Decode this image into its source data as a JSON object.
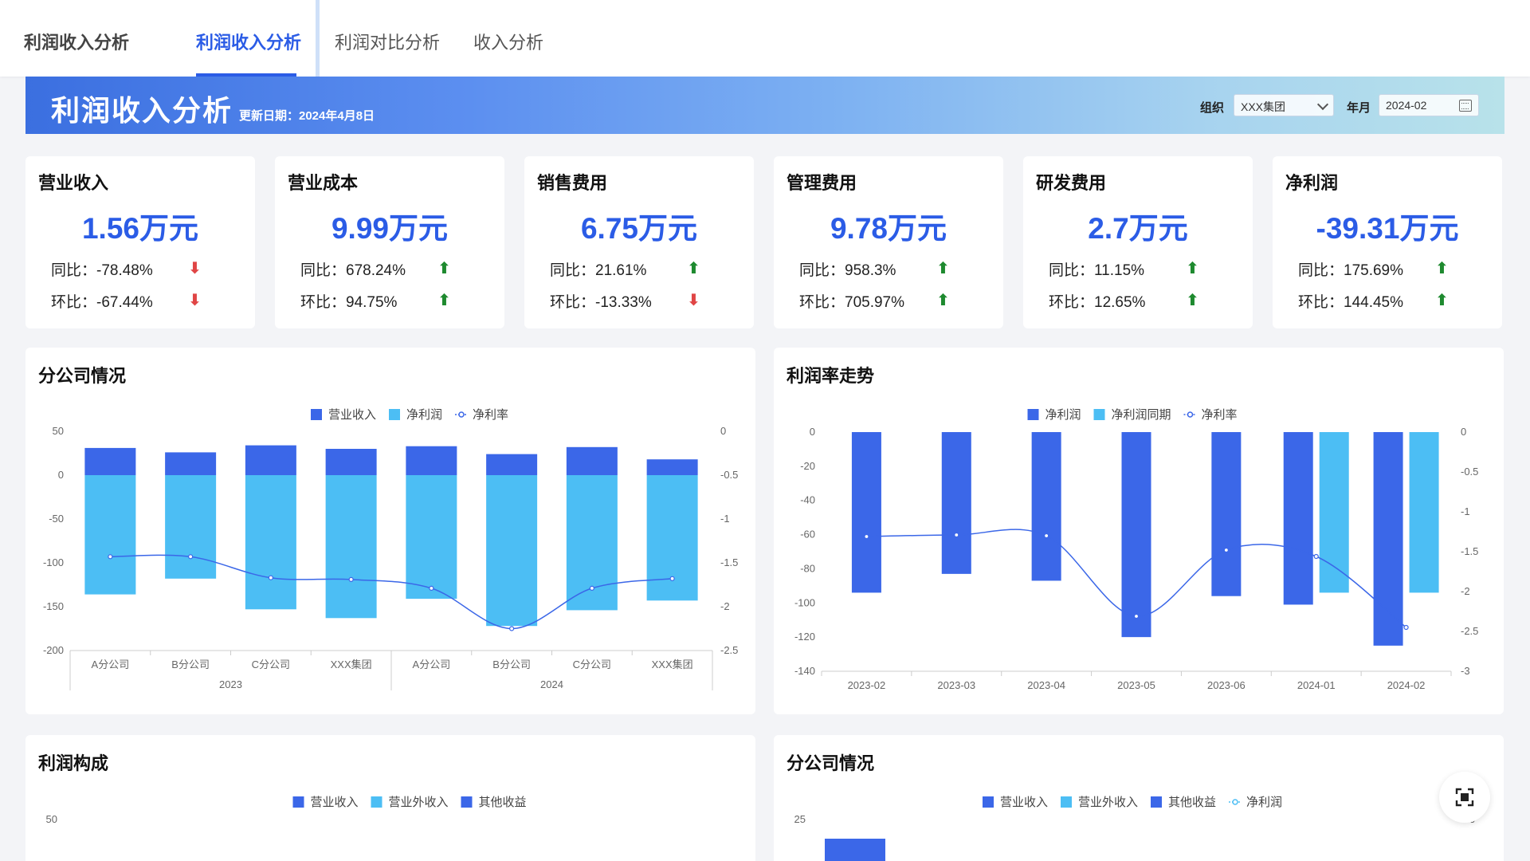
{
  "nav": {
    "brand": "利润收入分析",
    "tabs": [
      {
        "label": "利润收入分析"
      },
      {
        "label": "利润对比分析"
      },
      {
        "label": "收入分析"
      }
    ]
  },
  "banner": {
    "title": "利润收入分析",
    "update_date": "更新日期：2024年4月8日",
    "org_label": "组织",
    "org_value": "XXX集团",
    "month_label": "年月",
    "month_value": "2024-02"
  },
  "kpis": [
    {
      "title": "营业收入",
      "value": "1.56万元",
      "yoy": "同比：-78.48%",
      "yoy_dir": "down",
      "mom": "环比：-67.44%",
      "mom_dir": "down"
    },
    {
      "title": "营业成本",
      "value": "9.99万元",
      "yoy": "同比：678.24%",
      "yoy_dir": "up",
      "mom": "环比：94.75%",
      "mom_dir": "up"
    },
    {
      "title": "销售费用",
      "value": "6.75万元",
      "yoy": "同比：21.61%",
      "yoy_dir": "up",
      "mom": "环比：-13.33%",
      "mom_dir": "down"
    },
    {
      "title": "管理费用",
      "value": "9.78万元",
      "yoy": "同比：958.3%",
      "yoy_dir": "up",
      "mom": "环比：705.97%",
      "mom_dir": "up"
    },
    {
      "title": "研发费用",
      "value": "2.7万元",
      "yoy": "同比：11.15%",
      "yoy_dir": "up",
      "mom": "环比：12.65%",
      "mom_dir": "up"
    },
    {
      "title": "净利润",
      "value": "-39.31万元",
      "yoy": "同比：175.69%",
      "yoy_dir": "up",
      "mom": "环比：144.45%",
      "mom_dir": "up"
    }
  ],
  "colors": {
    "dark_blue": "#3b67e8",
    "light_blue": "#4cbef4",
    "up": "#1e8a2f",
    "down": "#e04545",
    "accent": "#2b5ce6"
  },
  "panels": {
    "branch_title": "分公司情况",
    "trend_title": "利润率走势",
    "composition_title": "利润构成",
    "branch2_title": "分公司情况"
  },
  "chart_data": [
    {
      "type": "bar",
      "title": "分公司情况",
      "categories": [
        "A分公司",
        "B分公司",
        "C分公司",
        "XXX集团",
        "A分公司",
        "B分公司",
        "C分公司",
        "XXX集团"
      ],
      "groups": [
        "2023",
        "2024"
      ],
      "series": [
        {
          "name": "营业收入",
          "values": [
            31,
            26,
            34,
            30,
            33,
            24,
            32,
            18
          ]
        },
        {
          "name": "净利润",
          "values": [
            -136,
            -118,
            -153,
            -163,
            -141,
            -172,
            -154,
            -143
          ]
        },
        {
          "name": "净利率",
          "axis": "right",
          "values": [
            -1.43,
            -1.43,
            -1.67,
            -1.69,
            -1.79,
            -2.25,
            -1.79,
            -1.68
          ]
        }
      ],
      "ylim_left": [
        -200,
        50
      ],
      "yticks_left": [
        "50",
        "0",
        "-50",
        "-100",
        "-150",
        "-200"
      ],
      "ylim_right": [
        -2.5,
        0
      ],
      "yticks_right": [
        "0",
        "-0.5",
        "-1",
        "-1.5",
        "-2",
        "-2.5"
      ]
    },
    {
      "type": "bar",
      "title": "利润率走势",
      "categories": [
        "2023-02",
        "2023-03",
        "2023-04",
        "2023-05",
        "2023-06",
        "2024-01",
        "2024-02"
      ],
      "series": [
        {
          "name": "净利润",
          "values": [
            -94,
            -83,
            -87,
            -120,
            -96,
            -101,
            -125
          ]
        },
        {
          "name": "净利润同期",
          "values": [
            null,
            null,
            null,
            null,
            null,
            -94,
            -94
          ]
        },
        {
          "name": "净利率",
          "axis": "right",
          "values": [
            -1.31,
            -1.29,
            -1.3,
            -2.31,
            -1.48,
            -1.56,
            -2.45
          ]
        }
      ],
      "ylim_left": [
        -140,
        0
      ],
      "yticks_left": [
        "0",
        "-20",
        "-40",
        "-60",
        "-80",
        "-100",
        "-120",
        "-140"
      ],
      "ylim_right": [
        -3,
        0
      ],
      "yticks_right": [
        "0",
        "-0.5",
        "-1",
        "-1.5",
        "-2",
        "-2.5",
        "-3"
      ]
    },
    {
      "type": "bar",
      "title": "利润构成",
      "series": [
        {
          "name": "营业收入"
        },
        {
          "name": "营业外收入"
        },
        {
          "name": "其他收益"
        }
      ],
      "yticks_left": [
        "50"
      ]
    },
    {
      "type": "bar",
      "title": "分公司情况",
      "series": [
        {
          "name": "营业收入"
        },
        {
          "name": "营业外收入"
        },
        {
          "name": "其他收益"
        },
        {
          "name": "净利润"
        }
      ],
      "yticks_left": [
        "25"
      ],
      "yticks_right": [
        "0"
      ]
    }
  ]
}
